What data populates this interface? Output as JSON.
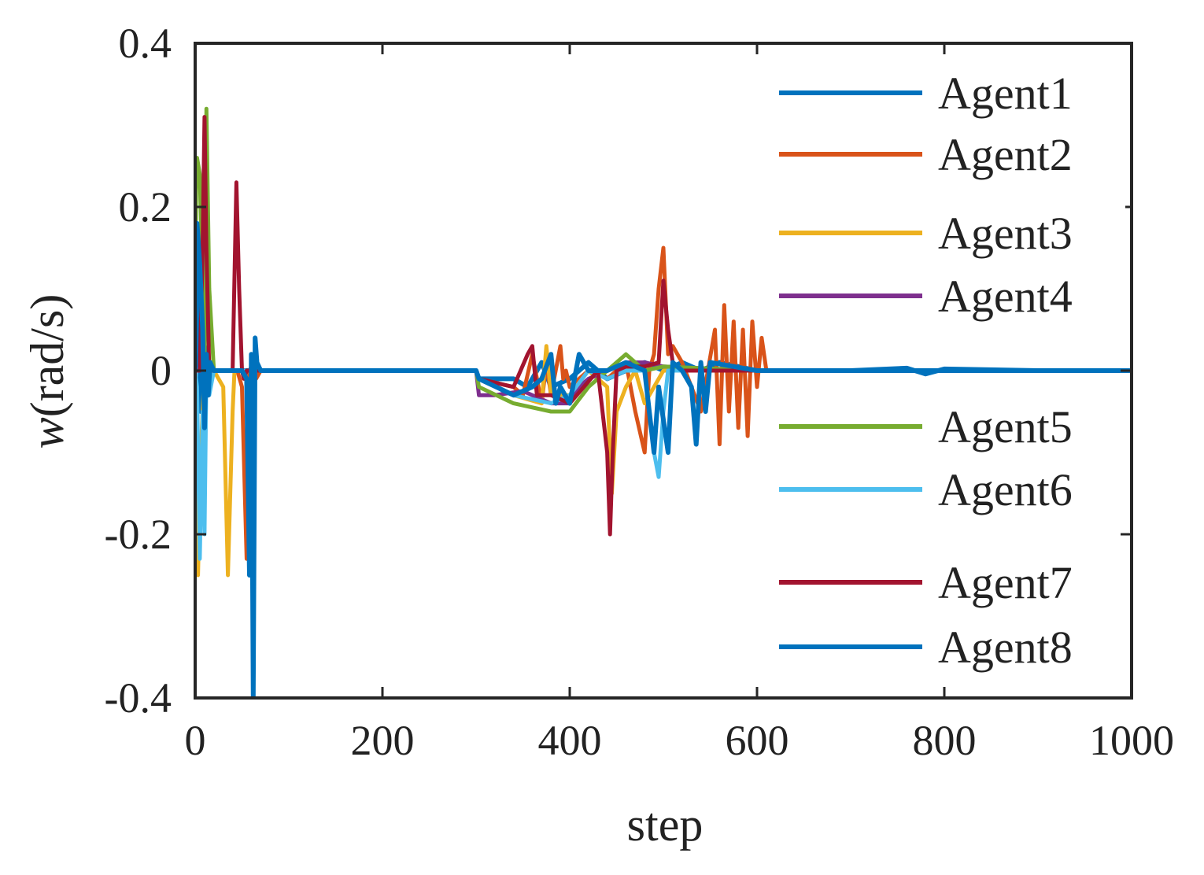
{
  "chart_data": {
    "type": "line",
    "title": "",
    "xlabel": "step",
    "ylabel_symbol": "w",
    "ylabel_unit": "(rad/s)",
    "xlim": [
      0,
      1000
    ],
    "ylim": [
      -0.4,
      0.4
    ],
    "xticks": [
      0,
      200,
      400,
      600,
      800,
      1000
    ],
    "xtick_labels": [
      "0",
      "200",
      "400",
      "600",
      "800",
      "1000"
    ],
    "yticks": [
      0.4,
      0.2,
      0,
      -0.2,
      -0.4
    ],
    "ytick_labels": [
      "0.4",
      "0.2",
      "0",
      "-0.2",
      "-0.4"
    ],
    "grid": false,
    "legend_position": "right",
    "series": [
      {
        "name": "Agent1",
        "color": "#0072BD",
        "x": [
          0,
          3,
          6,
          10,
          15,
          20,
          40,
          80,
          200,
          300,
          303,
          340,
          355,
          360,
          370,
          380,
          400,
          410,
          420,
          430,
          440,
          460,
          480,
          500,
          520,
          540,
          560,
          600,
          700,
          760,
          780,
          800,
          900,
          1000
        ],
        "y": [
          0,
          0.15,
          -0.05,
          0.03,
          -0.01,
          0,
          0,
          0,
          0,
          0,
          -0.01,
          -0.01,
          -0.02,
          -0.01,
          0.01,
          -0.02,
          -0.01,
          0,
          0.01,
          0,
          -0.01,
          0,
          0.01,
          0,
          0.01,
          0,
          0.01,
          0,
          0,
          0.003,
          -0.004,
          0.002,
          0,
          0
        ]
      },
      {
        "name": "Agent2",
        "color": "#D95319",
        "x": [
          0,
          10,
          20,
          30,
          45,
          50,
          55,
          58,
          60,
          65,
          70,
          100,
          200,
          300,
          303,
          340,
          350,
          360,
          370,
          375,
          380,
          390,
          393,
          396,
          400,
          420,
          440,
          460,
          470,
          480,
          485,
          490,
          495,
          500,
          505,
          510,
          520,
          540,
          555,
          560,
          565,
          570,
          575,
          580,
          585,
          590,
          595,
          600,
          605,
          610,
          620,
          700,
          800,
          900,
          1000
        ],
        "y": [
          0,
          0,
          0,
          0,
          0,
          -0.02,
          -0.23,
          0,
          0.005,
          -0.01,
          0,
          0,
          0,
          0,
          -0.01,
          -0.02,
          -0.03,
          0.02,
          -0.04,
          0.01,
          -0.03,
          0.03,
          -0.01,
          0,
          -0.02,
          0,
          -0.01,
          0.01,
          -0.05,
          -0.1,
          0,
          0.02,
          0.1,
          0.15,
          0.02,
          0.03,
          0.01,
          -0.05,
          0.05,
          -0.09,
          0.08,
          -0.05,
          0.06,
          -0.07,
          0.05,
          -0.08,
          0.06,
          -0.02,
          0.04,
          0,
          0,
          0,
          0,
          0,
          0
        ]
      },
      {
        "name": "Agent3",
        "color": "#EDB120",
        "x": [
          0,
          3,
          6,
          10,
          20,
          30,
          35,
          40,
          42,
          45,
          50,
          60,
          200,
          300,
          303,
          340,
          370,
          375,
          380,
          400,
          420,
          440,
          445,
          450,
          460,
          470,
          480,
          500,
          600,
          1000
        ],
        "y": [
          0,
          -0.25,
          -0.1,
          0,
          0,
          -0.02,
          -0.25,
          -0.05,
          0,
          0,
          0,
          0,
          0,
          0,
          -0.01,
          -0.03,
          -0.04,
          0.03,
          -0.03,
          -0.03,
          0,
          -0.02,
          -0.15,
          -0.05,
          -0.02,
          0,
          -0.04,
          0,
          0,
          0
        ]
      },
      {
        "name": "Agent4",
        "color": "#7E2F8E",
        "x": [
          0,
          10,
          20,
          100,
          200,
          300,
          303,
          320,
          350,
          380,
          400,
          410,
          420,
          440,
          460,
          480,
          500,
          600,
          1000
        ],
        "y": [
          0,
          0,
          0,
          0,
          0,
          0,
          -0.03,
          -0.03,
          -0.025,
          -0.04,
          -0.04,
          -0.02,
          -0.01,
          0,
          0.01,
          0.01,
          0.005,
          0,
          0
        ]
      },
      {
        "name": "Agent5",
        "color": "#77AC30",
        "x": [
          0,
          1,
          2,
          5,
          8,
          10,
          12,
          15,
          20,
          60,
          200,
          300,
          303,
          340,
          380,
          400,
          420,
          440,
          460,
          480,
          500,
          600,
          1000
        ],
        "y": [
          0,
          0.22,
          0.26,
          0.24,
          0.1,
          0.02,
          0.32,
          0.1,
          0,
          0,
          0,
          0,
          -0.02,
          -0.04,
          -0.05,
          -0.05,
          -0.02,
          0,
          0.02,
          0,
          0.005,
          0,
          0
        ]
      },
      {
        "name": "Agent6",
        "color": "#4DBEEE",
        "x": [
          0,
          2,
          5,
          8,
          10,
          12,
          15,
          20,
          60,
          200,
          300,
          303,
          340,
          380,
          400,
          420,
          440,
          460,
          480,
          485,
          490,
          495,
          500,
          505,
          510,
          600,
          1000
        ],
        "y": [
          0,
          -0.02,
          -0.23,
          -0.05,
          -0.2,
          0,
          -0.03,
          0,
          0,
          0,
          0,
          -0.01,
          -0.03,
          -0.04,
          -0.03,
          0,
          -0.01,
          0,
          0,
          -0.05,
          -0.1,
          -0.13,
          -0.05,
          0,
          0,
          0,
          0
        ]
      },
      {
        "name": "Agent7",
        "color": "#A2142F",
        "x": [
          0,
          5,
          8,
          10,
          12,
          15,
          20,
          40,
          44,
          47,
          50,
          52,
          55,
          60,
          100,
          200,
          300,
          303,
          340,
          355,
          360,
          365,
          380,
          400,
          430,
          440,
          443,
          446,
          450,
          460,
          480,
          495,
          500,
          505,
          510,
          520,
          600,
          1000
        ],
        "y": [
          0,
          0,
          0.15,
          0.31,
          0.15,
          0,
          0,
          0,
          0.23,
          0.1,
          0,
          -0.01,
          0,
          0,
          0,
          0,
          0,
          -0.01,
          -0.02,
          0.02,
          0.03,
          -0.03,
          -0.03,
          -0.04,
          0,
          -0.1,
          -0.2,
          -0.1,
          0,
          0.005,
          0.005,
          0.01,
          0.11,
          0.05,
          0.01,
          0,
          0,
          0
        ]
      },
      {
        "name": "Agent8",
        "color": "#0072BD",
        "x": [
          0,
          2,
          5,
          8,
          10,
          12,
          14,
          16,
          20,
          40,
          50,
          55,
          58,
          60,
          62,
          64,
          66,
          70,
          100,
          200,
          300,
          303,
          340,
          360,
          370,
          380,
          385,
          390,
          400,
          410,
          420,
          440,
          460,
          480,
          485,
          490,
          495,
          500,
          505,
          510,
          520,
          530,
          535,
          540,
          545,
          550,
          600,
          700,
          1000
        ],
        "y": [
          0,
          0.18,
          0.13,
          0.05,
          -0.07,
          0.02,
          -0.03,
          0.01,
          0,
          0,
          0,
          -0.01,
          -0.25,
          0.02,
          -0.4,
          0.04,
          0.01,
          0,
          0,
          0,
          0,
          -0.01,
          -0.03,
          -0.02,
          -0.01,
          0.02,
          -0.04,
          -0.02,
          -0.04,
          0.02,
          0,
          0,
          0.01,
          0,
          -0.05,
          -0.1,
          -0.02,
          -0.06,
          -0.1,
          0.01,
          0,
          -0.02,
          -0.09,
          0.01,
          -0.05,
          0.01,
          0,
          0,
          0
        ]
      }
    ]
  }
}
